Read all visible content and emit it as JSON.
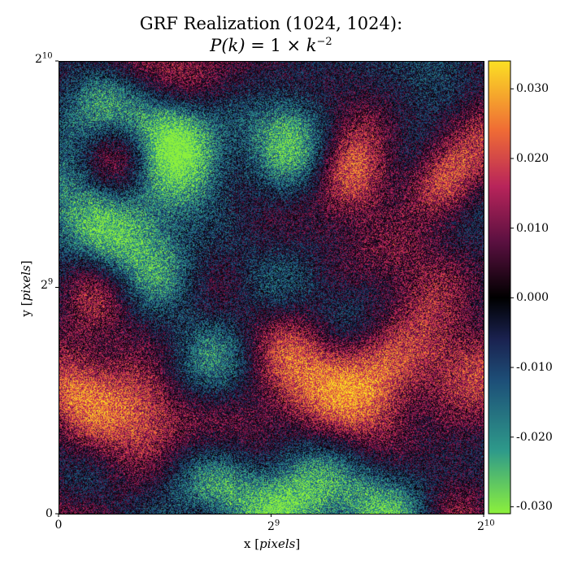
{
  "chart_data": {
    "type": "heatmap",
    "title": "GRF Realization (1024, 1024):",
    "subtitle": "P(k) = 1 × k⁻²",
    "subtitle_parts": {
      "lhs": "P(k)",
      "eq": " = 1 × ",
      "base": "k",
      "exp": "−2"
    },
    "xlabel": "x [pixels]",
    "ylabel": "y [pixels]",
    "xlabel_parts": {
      "prefix": "x [",
      "unit": "pixels",
      "suffix": "]"
    },
    "ylabel_parts": {
      "prefix": "y [",
      "unit": "pixels",
      "suffix": "]"
    },
    "grid_shape": [
      1024,
      1024
    ],
    "xlim": [
      0,
      1024
    ],
    "ylim": [
      0,
      1024
    ],
    "x_ticks": [
      {
        "value": 0,
        "label": "0",
        "exp": ""
      },
      {
        "value": 512,
        "label": "2",
        "exp": "9"
      },
      {
        "value": 1024,
        "label": "2",
        "exp": "10"
      }
    ],
    "y_ticks": [
      {
        "value": 0,
        "label": "0",
        "exp": ""
      },
      {
        "value": 512,
        "label": "2",
        "exp": "9"
      },
      {
        "value": 1024,
        "label": "2",
        "exp": "10"
      }
    ],
    "colorbar": {
      "colormap": "diverging green-teal-navy-black-maroon-orange-yellow",
      "vmin": -0.031,
      "vmax": 0.034,
      "ticks": [
        {
          "value": 0.03,
          "label": "0.030"
        },
        {
          "value": 0.02,
          "label": "0.020"
        },
        {
          "value": 0.01,
          "label": "0.010"
        },
        {
          "value": 0.0,
          "label": "0.000"
        },
        {
          "value": -0.01,
          "label": "-0.010"
        },
        {
          "value": -0.02,
          "label": "-0.020"
        },
        {
          "value": -0.03,
          "label": "-0.030"
        }
      ],
      "stops": [
        {
          "value": -0.031,
          "color": "#8cf03c"
        },
        {
          "value": -0.022,
          "color": "#2e9a8a"
        },
        {
          "value": -0.012,
          "color": "#1d4f78"
        },
        {
          "value": -0.006,
          "color": "#1a2250"
        },
        {
          "value": 0.0,
          "color": "#000000"
        },
        {
          "value": 0.008,
          "color": "#5a1040"
        },
        {
          "value": 0.016,
          "color": "#b8245a"
        },
        {
          "value": 0.024,
          "color": "#ef6b35"
        },
        {
          "value": 0.034,
          "color": "#fbe024"
        }
      ]
    },
    "field_features": [
      {
        "x": 590,
        "y": 300,
        "amp": 0.02,
        "r": 90
      },
      {
        "x": 700,
        "y": 760,
        "amp": 0.019,
        "r": 70
      },
      {
        "x": 910,
        "y": 740,
        "amp": 0.018,
        "r": 60
      },
      {
        "x": 880,
        "y": 560,
        "amp": 0.016,
        "r": 110
      },
      {
        "x": 50,
        "y": 300,
        "amp": 0.02,
        "r": 80
      },
      {
        "x": 210,
        "y": 230,
        "amp": 0.021,
        "r": 80
      },
      {
        "x": 790,
        "y": 240,
        "amp": 0.014,
        "r": 100
      },
      {
        "x": 950,
        "y": 150,
        "amp": 0.013,
        "r": 80
      },
      {
        "x": 150,
        "y": 820,
        "amp": 0.008,
        "r": 60
      },
      {
        "x": 500,
        "y": 420,
        "amp": 0.006,
        "r": 70
      },
      {
        "x": 520,
        "y": 890,
        "amp": -0.021,
        "r": 90
      },
      {
        "x": 120,
        "y": 920,
        "amp": -0.017,
        "r": 80
      },
      {
        "x": 280,
        "y": 760,
        "amp": -0.019,
        "r": 90
      },
      {
        "x": 80,
        "y": 680,
        "amp": -0.016,
        "r": 90
      },
      {
        "x": 580,
        "y": 70,
        "amp": -0.02,
        "r": 90
      },
      {
        "x": 380,
        "y": 330,
        "amp": -0.017,
        "r": 90
      },
      {
        "x": 830,
        "y": 900,
        "amp": -0.014,
        "r": 80
      },
      {
        "x": 200,
        "y": 600,
        "amp": -0.013,
        "r": 90
      },
      {
        "x": 680,
        "y": 430,
        "amp": -0.011,
        "r": 70
      },
      {
        "x": 780,
        "y": 50,
        "amp": -0.012,
        "r": 80
      },
      {
        "x": 400,
        "y": 80,
        "amp": -0.01,
        "r": 70
      },
      {
        "x": 250,
        "y": 880,
        "amp": -0.012,
        "r": 60
      }
    ],
    "grid": false,
    "legend": "none"
  }
}
